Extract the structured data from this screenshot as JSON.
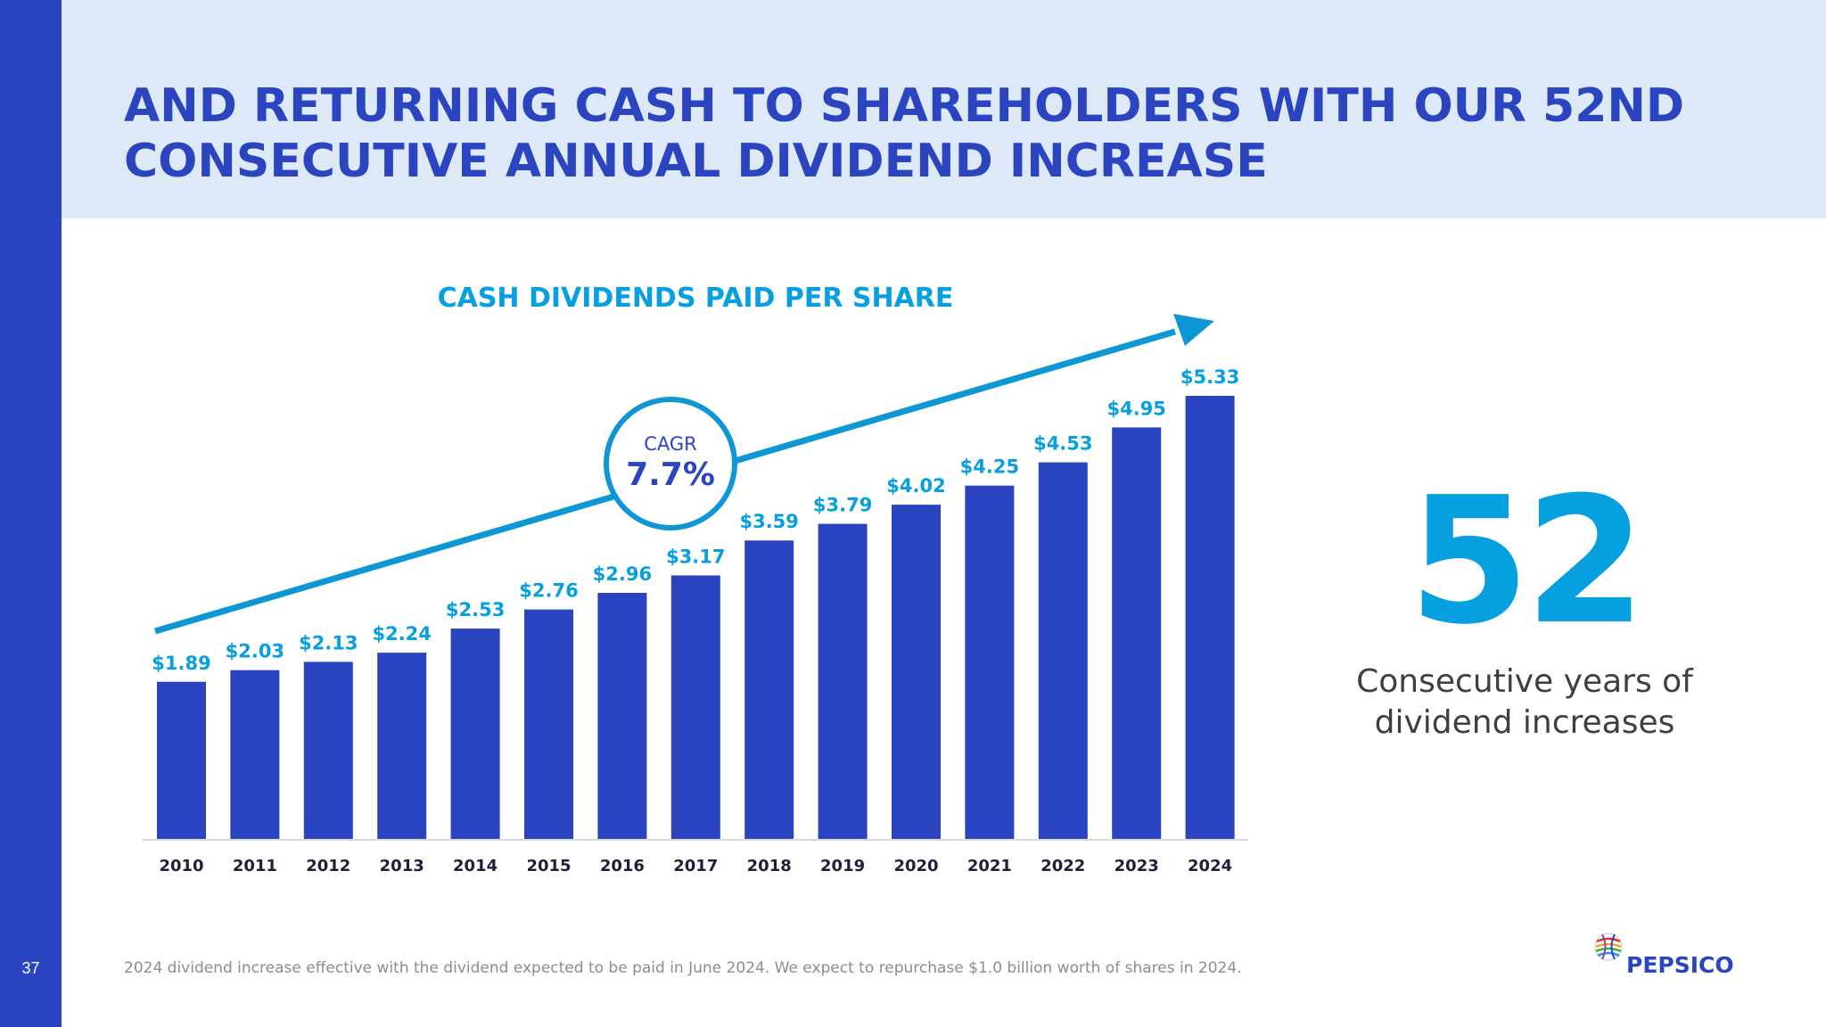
{
  "page": {
    "number": "37"
  },
  "title": {
    "line1": "AND RETURNING CASH TO SHAREHOLDERS WITH OUR 52ND",
    "line2": "CONSECUTIVE ANNUAL DIVIDEND INCREASE"
  },
  "chart_data": {
    "type": "bar",
    "title": "CASH DIVIDENDS PAID PER SHARE",
    "categories": [
      "2010",
      "2011",
      "2012",
      "2013",
      "2014",
      "2015",
      "2016",
      "2017",
      "2018",
      "2019",
      "2020",
      "2021",
      "2022",
      "2023",
      "2024"
    ],
    "values": [
      1.89,
      2.03,
      2.13,
      2.24,
      2.53,
      2.76,
      2.96,
      3.17,
      3.59,
      3.79,
      4.02,
      4.25,
      4.53,
      4.95,
      5.33
    ],
    "value_labels": [
      "$1.89",
      "$2.03",
      "$2.13",
      "$2.24",
      "$2.53",
      "$2.76",
      "$2.96",
      "$3.17",
      "$3.59",
      "$3.79",
      "$4.02",
      "$4.25",
      "$4.53",
      "$4.95",
      "$5.33"
    ],
    "ylim": [
      0,
      5.33
    ],
    "grid": false,
    "bar_color": "#2b44bf",
    "label_color": "#069fdf",
    "trend_arrow_color": "#0d97d4",
    "cagr_label": "CAGR",
    "cagr_value": "7.7%"
  },
  "stat": {
    "number": "52",
    "caption_line1": "Consecutive years of",
    "caption_line2": "dividend increases"
  },
  "footnote": "2024 dividend increase effective with the dividend expected to be paid in June 2024. We expect to repurchase $1.0 billion worth of shares in 2024.",
  "logo": {
    "text": "PEPSICO",
    "icon": "pepsico-globe-icon"
  },
  "colors": {
    "accent": "#2b44bf",
    "secondary": "#069fdf",
    "header_bg": "#dde9f6"
  }
}
